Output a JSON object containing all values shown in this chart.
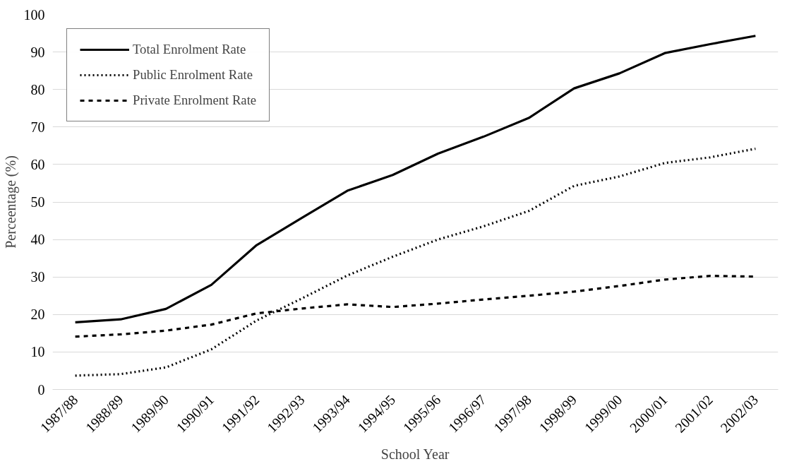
{
  "chart_data": {
    "type": "line",
    "xlabel": "School Year",
    "ylabel": "Perceentage (%)",
    "categories": [
      "1987/88",
      "1988/89",
      "1989/90",
      "1990/91",
      "1991/92",
      "1992/93",
      "1993/94",
      "1994/95",
      "1995/96",
      "1996/97",
      "1997/98",
      "1998/99",
      "1999/00",
      "2000/01",
      "2001/02",
      "2002/03"
    ],
    "series": [
      {
        "name": "Total Enrolment Rate",
        "color": "#000000",
        "line_style": "solid",
        "values": [
          17.9,
          18.7,
          21.5,
          27.9,
          38.5,
          45.8,
          53.0,
          57.2,
          62.9,
          67.4,
          72.4,
          80.3,
          84.3,
          89.7,
          92.1,
          94.3
        ]
      },
      {
        "name": "Public Enrolment Rate",
        "color": "#000000",
        "line_style": "dotted",
        "values": [
          3.7,
          4.1,
          5.9,
          10.7,
          18.4,
          24.3,
          30.4,
          35.4,
          40.0,
          43.5,
          47.6,
          54.3,
          56.8,
          60.4,
          61.9,
          64.2
        ]
      },
      {
        "name": "Private Enrolment Rate",
        "color": "#000000",
        "line_style": "dashed",
        "values": [
          14.1,
          14.7,
          15.7,
          17.3,
          20.3,
          21.6,
          22.7,
          22.0,
          22.9,
          24.0,
          25.0,
          26.1,
          27.6,
          29.3,
          30.3,
          30.1
        ]
      }
    ],
    "ylim": [
      0,
      100
    ],
    "yticks": [
      0,
      10,
      20,
      30,
      40,
      50,
      60,
      70,
      80,
      90,
      100
    ],
    "grid": "y",
    "legend": "top left",
    "marker": "none"
  }
}
